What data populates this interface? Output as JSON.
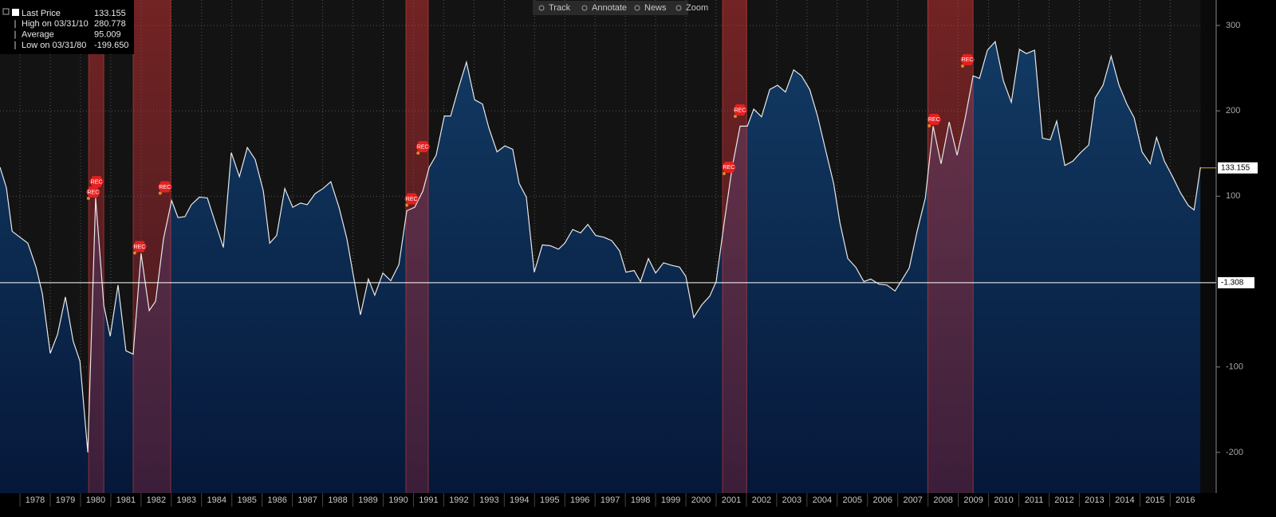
{
  "chart_data": {
    "type": "area",
    "toolbar": [
      "Track",
      "Annotate",
      "News",
      "Zoom"
    ],
    "stats": [
      {
        "label": "Last Price",
        "text": "133.155"
      },
      {
        "label": "High on 03/31/10",
        "text": "280.778"
      },
      {
        "label": "Average",
        "text": "95.009"
      },
      {
        "label": "Low on 03/31/80",
        "text": "-199.650"
      }
    ],
    "last_price": 133.155,
    "reference_line": -1.308,
    "line_color": "#e8e8e8",
    "xlim": [
      1977.34,
      2017.52
    ],
    "ylim": [
      -247.7,
      329.8
    ],
    "yticks": [
      -200,
      -100,
      100,
      200,
      300
    ],
    "xticks": [
      1978,
      1979,
      1980,
      1981,
      1982,
      1983,
      1984,
      1985,
      1986,
      1987,
      1988,
      1989,
      1990,
      1991,
      1992,
      1993,
      1994,
      1995,
      1996,
      1997,
      1998,
      1999,
      2000,
      2001,
      2002,
      2003,
      2004,
      2005,
      2006,
      2007,
      2008,
      2009,
      2010,
      2011,
      2012,
      2013,
      2014,
      2015,
      2016
    ],
    "grid": true,
    "recessions": [
      [
        1980.27,
        1980.77
      ],
      [
        1981.74,
        1982.98
      ],
      [
        1990.75,
        1991.49
      ],
      [
        2001.21,
        2002.01
      ],
      [
        2007.99,
        2009.49
      ]
    ],
    "annotations": [
      {
        "label": "REC",
        "x": 1980.53,
        "y": 117
      },
      {
        "label": "REC",
        "x": 1980.42,
        "y": 105
      },
      {
        "label": "REC",
        "x": 1981.95,
        "y": 41
      },
      {
        "label": "REC",
        "x": 1982.79,
        "y": 111
      },
      {
        "label": "REC",
        "x": 1990.94,
        "y": 97
      },
      {
        "label": "REC",
        "x": 1991.31,
        "y": 158
      },
      {
        "label": "REC",
        "x": 2001.42,
        "y": 134
      },
      {
        "label": "REC",
        "x": 2001.79,
        "y": 201
      },
      {
        "label": "REC",
        "x": 2008.2,
        "y": 190
      },
      {
        "label": "REC",
        "x": 2009.3,
        "y": 260
      }
    ],
    "x": [
      1977.34,
      1977.55,
      1977.74,
      1978.0,
      1978.26,
      1978.53,
      1978.74,
      1979.0,
      1979.24,
      1979.5,
      1979.76,
      1979.98,
      1980.24,
      1980.5,
      1980.77,
      1980.98,
      1981.24,
      1981.5,
      1981.74,
      1982.0,
      1982.27,
      1982.48,
      1982.74,
      1983.01,
      1983.22,
      1983.45,
      1983.66,
      1983.93,
      1984.19,
      1984.45,
      1984.72,
      1984.98,
      1985.25,
      1985.51,
      1985.77,
      1986.04,
      1986.25,
      1986.48,
      1986.75,
      1987.01,
      1987.27,
      1987.49,
      1987.75,
      1988.01,
      1988.27,
      1988.54,
      1988.8,
      1989.01,
      1989.25,
      1989.51,
      1989.72,
      1989.99,
      1990.25,
      1990.52,
      1990.78,
      1991.04,
      1991.31,
      1991.52,
      1991.75,
      1992.02,
      1992.23,
      1992.49,
      1992.75,
      1993.02,
      1993.28,
      1993.49,
      1993.76,
      1994.02,
      1994.28,
      1994.49,
      1994.73,
      1994.99,
      1995.26,
      1995.52,
      1995.79,
      1996.0,
      1996.26,
      1996.52,
      1996.76,
      1997.02,
      1997.29,
      1997.55,
      1997.81,
      1998.02,
      1998.29,
      1998.5,
      1998.76,
      1999.0,
      1999.26,
      1999.53,
      1999.79,
      2000.0,
      2000.26,
      2000.53,
      2000.79,
      2001.0,
      2001.27,
      2001.53,
      2001.79,
      2002.03,
      2002.24,
      2002.5,
      2002.77,
      2003.03,
      2003.29,
      2003.56,
      2003.82,
      2004.09,
      2004.35,
      2004.61,
      2004.88,
      2005.09,
      2005.35,
      2005.61,
      2005.88,
      2006.11,
      2006.38,
      2006.64,
      2006.91,
      2007.12,
      2007.38,
      2007.64,
      2007.91,
      2008.17,
      2008.43,
      2008.7,
      2008.96,
      2009.22,
      2009.49,
      2009.7,
      2009.96,
      2010.22,
      2010.49,
      2010.75,
      2011.02,
      2011.25,
      2011.52,
      2011.78,
      2012.04,
      2012.25,
      2012.52,
      2012.78,
      2013.04,
      2013.31,
      2013.52,
      2013.78,
      2014.05,
      2014.31,
      2014.57,
      2014.81,
      2015.07,
      2015.34,
      2015.55,
      2015.81,
      2016.08,
      2016.34,
      2016.6,
      2016.79,
      2017.0
    ],
    "values": [
      134,
      110,
      59,
      52,
      45,
      17,
      -14,
      -84,
      -62,
      -18,
      -70,
      -93,
      -200,
      98,
      -28,
      -64,
      -4,
      -81,
      -85,
      33,
      -34,
      -23,
      50,
      95,
      75,
      76,
      90,
      99,
      98,
      69,
      40,
      151,
      123,
      157,
      143,
      106,
      45,
      54,
      109,
      87,
      92,
      90,
      103,
      109,
      117,
      87,
      50,
      8,
      -39,
      3,
      -16,
      10,
      1,
      20,
      83,
      87,
      106,
      134,
      148,
      194,
      194,
      227,
      257,
      213,
      208,
      180,
      152,
      159,
      155,
      115,
      99,
      11,
      43,
      42,
      38,
      45,
      61,
      57,
      67,
      54,
      52,
      48,
      36,
      11,
      13,
      0,
      27,
      10,
      22,
      19,
      17,
      6,
      -42,
      -27,
      -17,
      0,
      70,
      134,
      182,
      182,
      202,
      193,
      225,
      230,
      222,
      248,
      241,
      225,
      194,
      155,
      115,
      69,
      27,
      17,
      0,
      3,
      -3,
      -4,
      -11,
      1,
      16,
      59,
      98,
      182,
      138,
      187,
      148,
      190,
      241,
      238,
      271,
      281,
      235,
      210,
      272,
      267,
      271,
      168,
      166,
      188,
      136,
      141,
      151,
      160,
      215,
      230,
      264,
      230,
      208,
      192,
      152,
      138,
      169,
      141,
      123,
      104,
      89,
      84,
      134
    ]
  }
}
